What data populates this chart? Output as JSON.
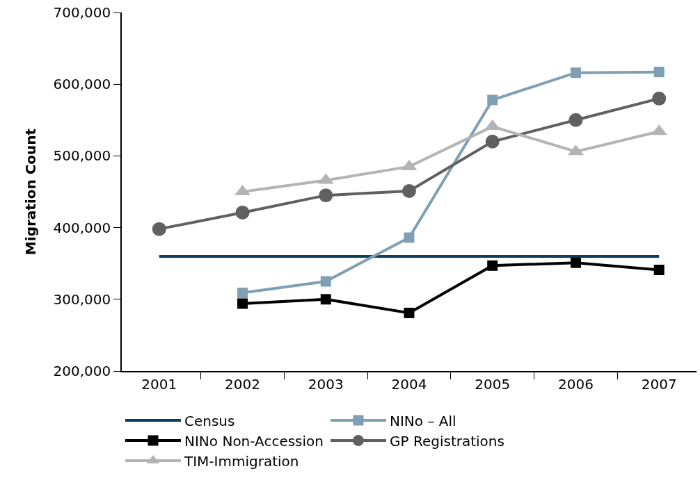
{
  "chart_data": {
    "type": "line",
    "ylabel": "Migration Count",
    "categories": [
      "2001",
      "2002",
      "2003",
      "2004",
      "2005",
      "2006",
      "2007"
    ],
    "ylim": [
      200000,
      700000
    ],
    "yticks": [
      {
        "value": 200000,
        "label": "200,000"
      },
      {
        "value": 300000,
        "label": "300,000"
      },
      {
        "value": 400000,
        "label": "400,000"
      },
      {
        "value": 500000,
        "label": "500,000"
      },
      {
        "value": 600000,
        "label": "600,000"
      },
      {
        "value": 700000,
        "label": "700,000"
      }
    ],
    "grid": false,
    "legend": "bottom",
    "line_style": "solid",
    "series": [
      {
        "name": "Census",
        "color": "#0d3f5f",
        "marker": "none",
        "values": [
          360000,
          360000,
          360000,
          360000,
          360000,
          360000,
          360000
        ]
      },
      {
        "name": "NINo – All",
        "color": "#7f9fb5",
        "marker": "square",
        "values": [
          null,
          309000,
          325000,
          386000,
          578000,
          616000,
          617000
        ]
      },
      {
        "name": "NINo Non-Accession",
        "color": "#000000",
        "marker": "square",
        "values": [
          null,
          294000,
          300000,
          281000,
          347000,
          351000,
          341000
        ]
      },
      {
        "name": "GP Registrations",
        "color": "#606060",
        "marker": "circle",
        "values": [
          398000,
          421000,
          445000,
          451000,
          520000,
          550000,
          580000
        ]
      },
      {
        "name": "TIM-Immigration",
        "color": "#b4b4b4",
        "marker": "triangle",
        "values": [
          null,
          450000,
          466000,
          485000,
          541000,
          506000,
          534000
        ]
      }
    ]
  }
}
